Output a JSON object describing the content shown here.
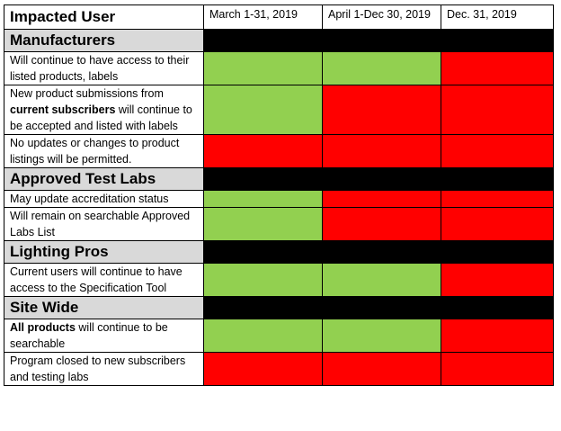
{
  "header": {
    "title": "Impacted User",
    "columns": [
      "March 1-31, 2019",
      "April 1-Dec 30, 2019",
      "Dec. 31, 2019"
    ]
  },
  "colors": {
    "green": "#92d050",
    "red": "#ff0000",
    "section_bg": "#d9d9d9",
    "bar": "#000000"
  },
  "sections": [
    {
      "name": "Manufacturers",
      "rows": [
        {
          "text": "Will continue to have access to their listed products, labels",
          "status": [
            "green",
            "green",
            "red"
          ]
        },
        {
          "pre": "New product submissions from ",
          "bold": "current subscribers",
          "post": " will continue to be accepted and listed with labels",
          "status": [
            "green",
            "red",
            "red"
          ]
        },
        {
          "text": "No updates or changes to product listings will be permitted.",
          "status": [
            "red",
            "red",
            "red"
          ]
        }
      ]
    },
    {
      "name": "Approved Test Labs",
      "rows": [
        {
          "text": "May update accreditation status",
          "status": [
            "green",
            "red",
            "red"
          ]
        },
        {
          "text": "Will remain on searchable Approved Labs List",
          "status": [
            "green",
            "red",
            "red"
          ]
        }
      ]
    },
    {
      "name": "Lighting Pros",
      "rows": [
        {
          "text": "Current users will continue to have access to the Specification Tool",
          "status": [
            "green",
            "green",
            "red"
          ]
        }
      ]
    },
    {
      "name": "Site Wide",
      "rows": [
        {
          "bold": "All products",
          "post": " will continue to be searchable",
          "status": [
            "green",
            "green",
            "red"
          ]
        },
        {
          "text": "Program closed to new subscribers and testing labs",
          "status": [
            "red",
            "red",
            "red"
          ]
        }
      ]
    }
  ]
}
